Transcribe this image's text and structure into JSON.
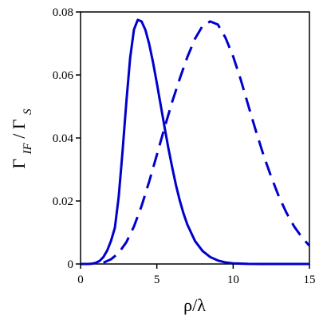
{
  "chart_data": {
    "type": "line",
    "title": "",
    "xlabel": "ρ/λ",
    "ylabel": {
      "main": "Γ",
      "sub": "IF",
      "slash": " / Γ",
      "sub2": "S"
    },
    "xlim": [
      0,
      15
    ],
    "ylim": [
      0,
      0.08
    ],
    "xticks": [
      0,
      5,
      10,
      15
    ],
    "xtick_labels": [
      "0",
      "5",
      "10",
      "15"
    ],
    "yticks": [
      0,
      0.02,
      0.04,
      0.06,
      0.08
    ],
    "ytick_labels": [
      "0",
      "0.02",
      "0.04",
      "0.06",
      "0.08"
    ],
    "grid": false,
    "legend": "none",
    "line_color": "#0000cc",
    "series": [
      {
        "style": "solid",
        "x": [
          0,
          0.25,
          0.5,
          0.75,
          1,
          1.25,
          1.5,
          1.75,
          2,
          2.25,
          2.5,
          2.75,
          3,
          3.25,
          3.5,
          3.75,
          4,
          4.25,
          4.5,
          4.75,
          5,
          5.25,
          5.5,
          5.75,
          6,
          6.25,
          6.5,
          6.75,
          7,
          7.5,
          8,
          8.5,
          9,
          9.5,
          10,
          11,
          12,
          13,
          14,
          15
        ],
        "y": [
          0,
          5e-07,
          1.3e-05,
          9e-05,
          0.00035,
          0.00098,
          0.0022,
          0.0043,
          0.0074,
          0.0115,
          0.0213,
          0.0356,
          0.0513,
          0.0654,
          0.0744,
          0.0775,
          0.077,
          0.0743,
          0.0698,
          0.064,
          0.0574,
          0.0505,
          0.0436,
          0.0369,
          0.0308,
          0.0251,
          0.0202,
          0.016,
          0.0125,
          0.0073,
          0.0041,
          0.0022,
          0.0011,
          0.0005,
          0.0002,
          4e-05,
          6e-06,
          8e-07,
          1e-07,
          0
        ]
      },
      {
        "style": "dashed",
        "x": [
          1.5,
          2,
          2.5,
          3,
          3.5,
          4,
          4.5,
          5,
          5.5,
          6,
          6.5,
          7,
          7.5,
          8,
          8.5,
          9,
          9.5,
          10,
          10.5,
          11,
          11.5,
          12,
          12.5,
          13,
          13.5,
          14,
          14.5,
          15
        ],
        "y": [
          0.0004,
          0.0015,
          0.0035,
          0.0069,
          0.0119,
          0.0184,
          0.0262,
          0.0346,
          0.0432,
          0.0514,
          0.0588,
          0.0657,
          0.0715,
          0.0756,
          0.077,
          0.076,
          0.0718,
          0.0659,
          0.0585,
          0.0502,
          0.0421,
          0.0344,
          0.0276,
          0.0214,
          0.0162,
          0.0119,
          0.0085,
          0.0058
        ]
      }
    ]
  }
}
